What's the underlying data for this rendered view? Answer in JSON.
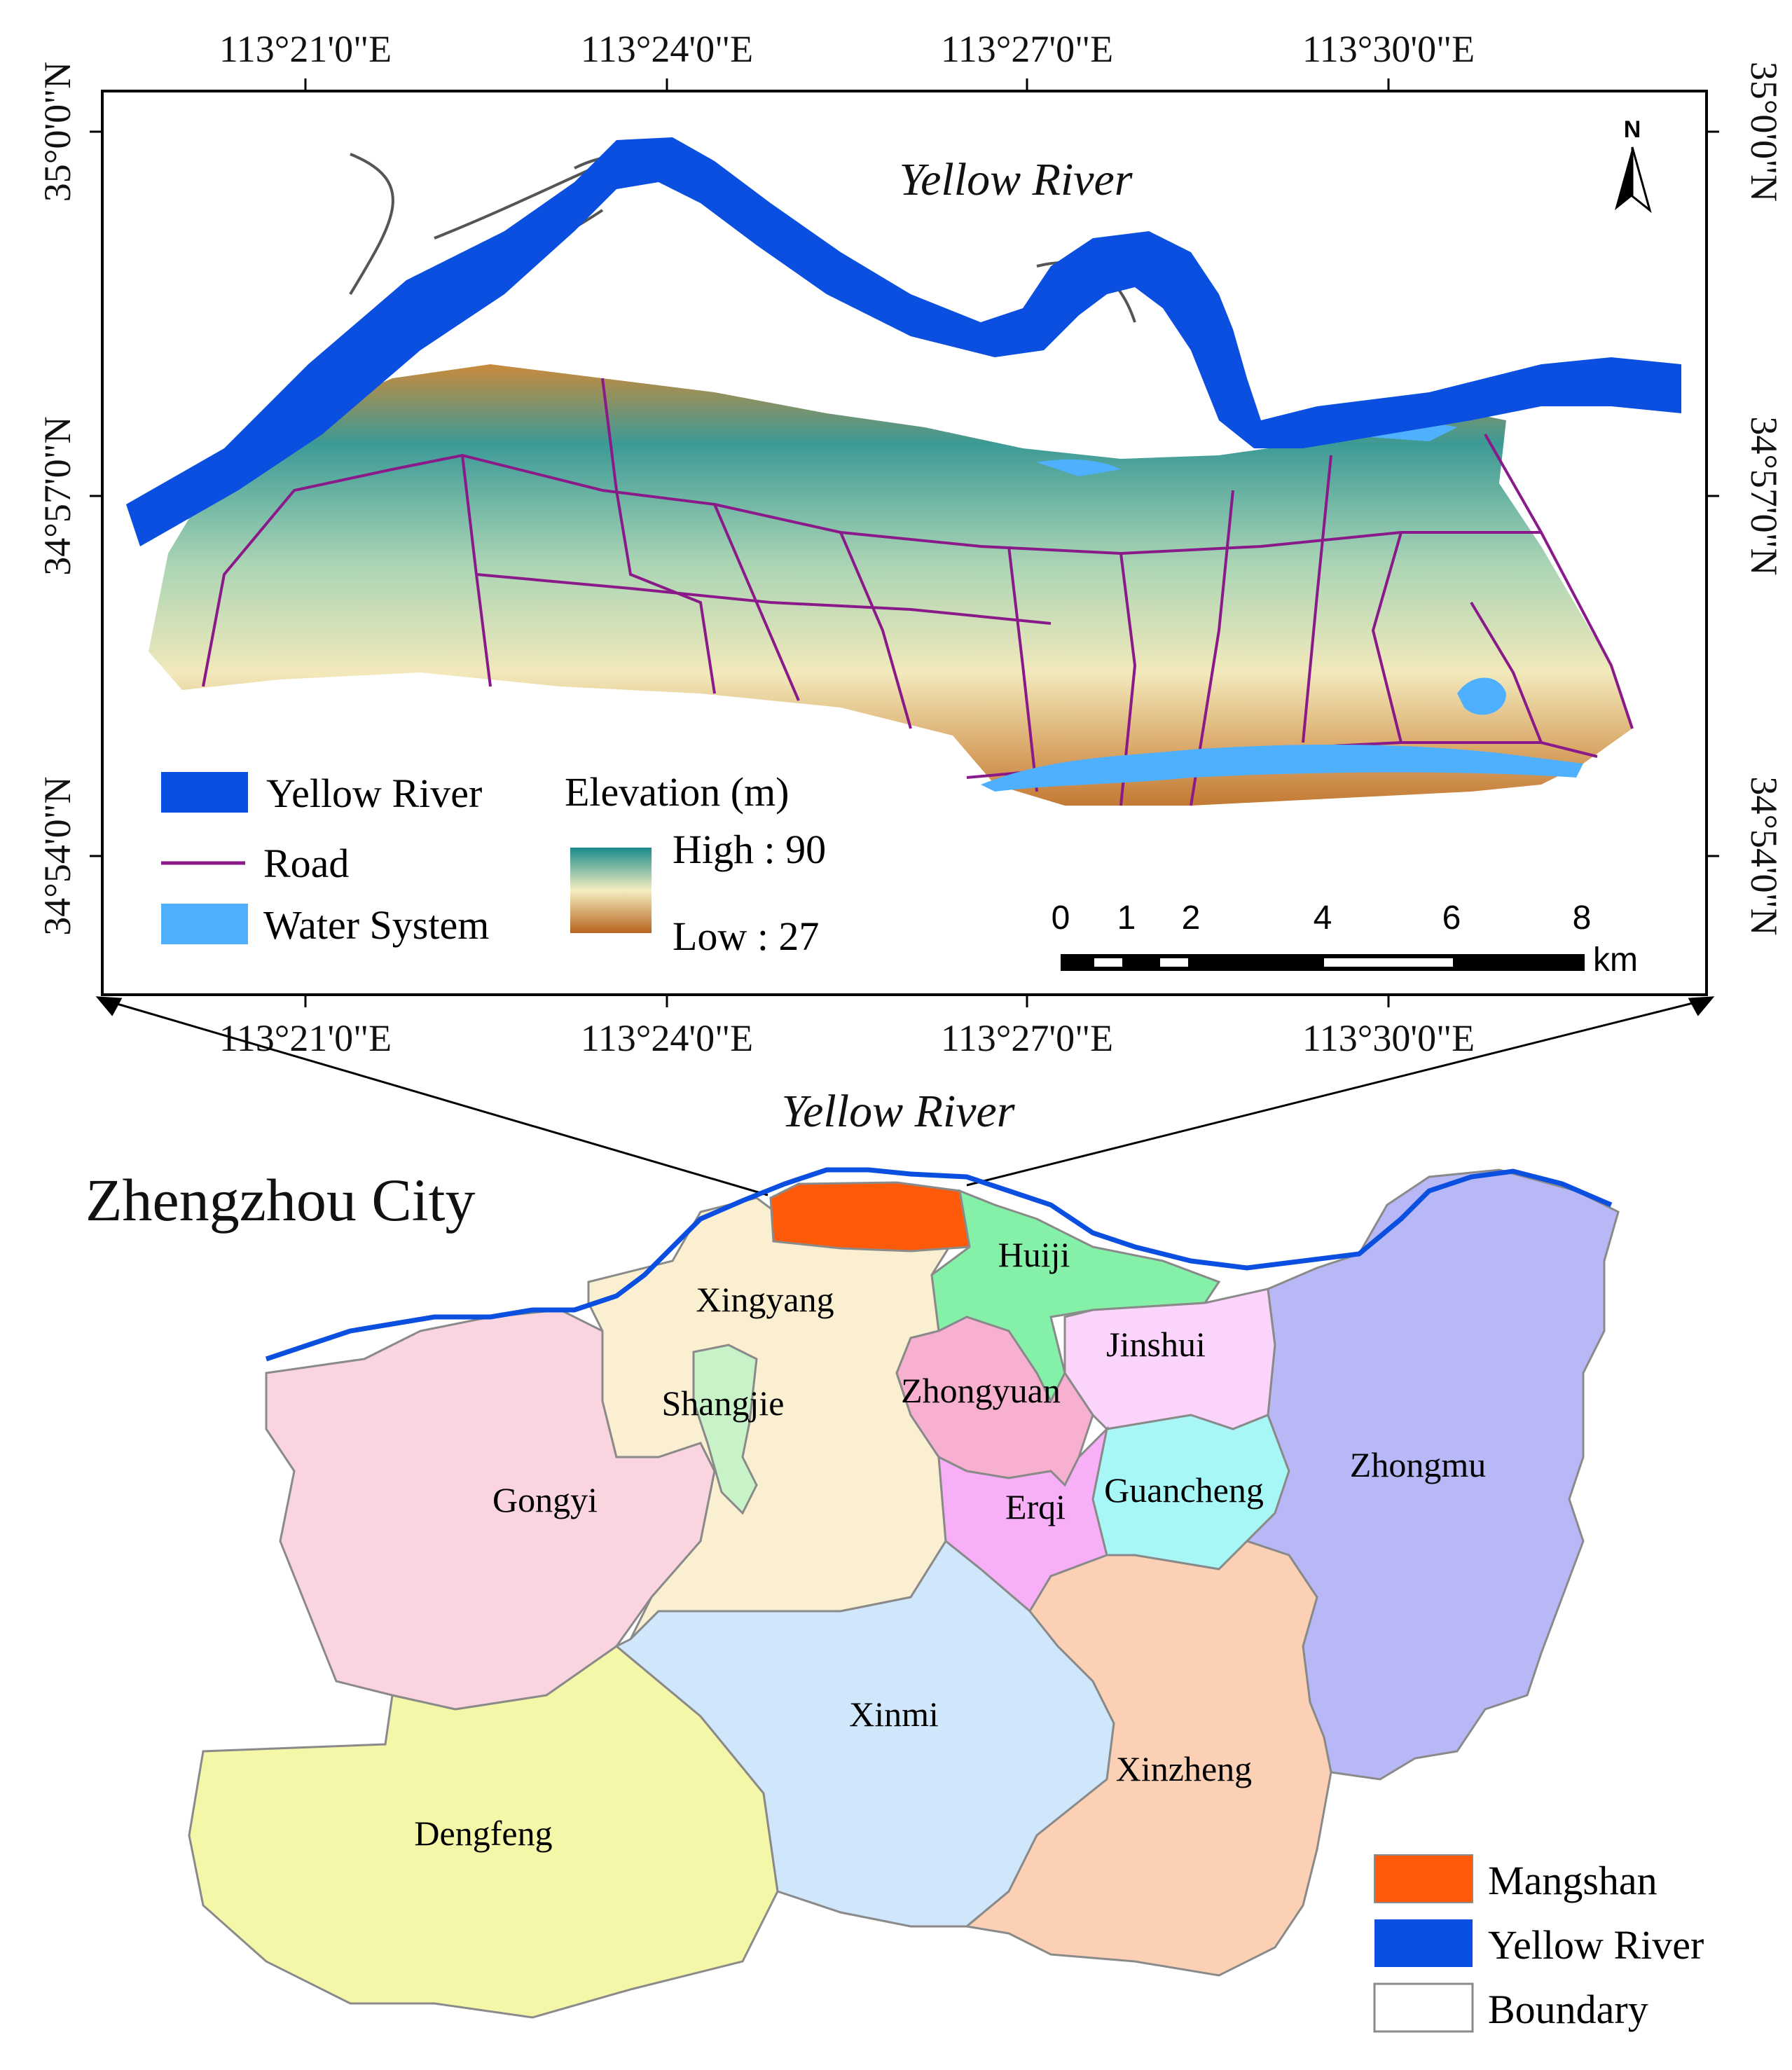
{
  "inset": {
    "river_label": "Yellow River",
    "north_label": "N",
    "lon_ticks": [
      "113°21'0\"E",
      "113°24'0\"E",
      "113°27'0\"E",
      "113°30'0\"E"
    ],
    "lat_ticks": [
      "35°0'0\"N",
      "34°57'0\"N",
      "34°54'0\"N"
    ],
    "legend": {
      "yellow_river": "Yellow River",
      "road": "Road",
      "water_system": "Water System",
      "elevation_title": "Elevation (m)",
      "high": "High : 90",
      "low": "Low : 27"
    },
    "scale": {
      "ticks": [
        "0",
        "1",
        "2",
        "4",
        "6",
        "8"
      ],
      "unit": "km"
    }
  },
  "main": {
    "river_label": "Yellow River",
    "city_title": "Zhengzhou City",
    "districts": [
      "Xingyang",
      "Huiji",
      "Jinshui",
      "Zhongyuan",
      "Shangjie",
      "Gongyi",
      "Erqi",
      "Guancheng",
      "Zhongmu",
      "Xinmi",
      "Xinzheng",
      "Dengfeng"
    ],
    "legend": {
      "mangshan": "Mangshan",
      "yellow_river": "Yellow River",
      "boundary": "Boundary"
    }
  },
  "colors": {
    "river": "#0a4fe0",
    "water_system": "#4fb0ff",
    "road": "#8a1a8a",
    "mangshan": "#ff5a0a",
    "elev_high": "#1a8a8a",
    "elev_mid": "#f5eec0",
    "elev_low": "#b8641e"
  }
}
